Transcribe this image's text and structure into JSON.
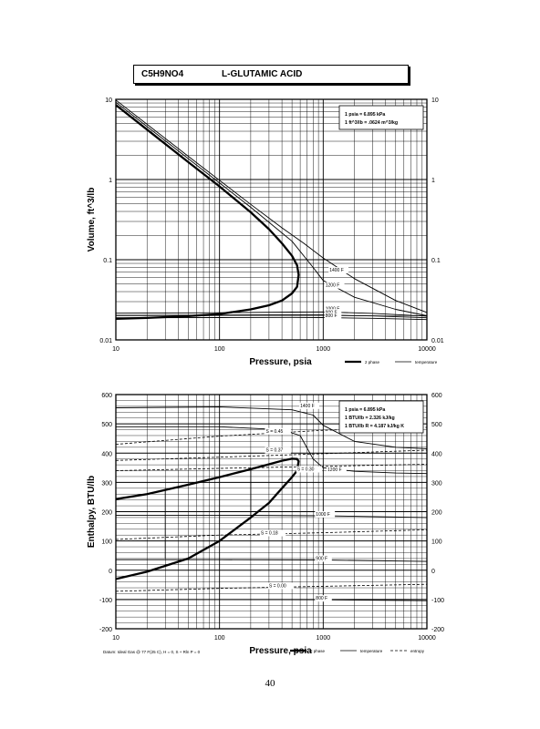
{
  "header": {
    "formula": "C5H9NO4",
    "compound": "L-GLUTAMIC ACID"
  },
  "page_number": "40",
  "chart_data": [
    {
      "type": "line",
      "xlabel": "Pressure,  psia",
      "ylabel": "Volume, ft^3/lb",
      "x_scale": "log",
      "y_scale": "log",
      "xlim": [
        10,
        10000
      ],
      "ylim": [
        0.01,
        10
      ],
      "grid": true,
      "x_ticks": [
        "10",
        "100",
        "1000",
        "10000"
      ],
      "y_ticks": [
        "0.01",
        "0.1",
        "1",
        "10"
      ],
      "y_ticks_right": [
        "0.01",
        "0.1",
        "1",
        "10"
      ],
      "conversion_box": {
        "lines": [
          "1 psia  =  6.895 kPa",
          "1 ft^3/lb  =  .0624 m^3/kg"
        ],
        "position": "top-right"
      },
      "legend": [
        {
          "label": "2 phase",
          "style": "thick"
        },
        {
          "label": "temperature",
          "style": "thin"
        }
      ],
      "series": [
        {
          "name": "2 phase",
          "style": "thick",
          "x": [
            10,
            20,
            50,
            100,
            200,
            300,
            400,
            500,
            560,
            580,
            560,
            500,
            400,
            300,
            200,
            100,
            50,
            20,
            10
          ],
          "y": [
            8.5,
            4.2,
            1.65,
            0.82,
            0.39,
            0.24,
            0.16,
            0.112,
            0.085,
            0.065,
            0.046,
            0.038,
            0.031,
            0.027,
            0.024,
            0.021,
            0.0198,
            0.0188,
            0.0183
          ]
        },
        {
          "name": "1400 F",
          "style": "thin",
          "x": [
            10,
            50,
            200,
            400,
            650,
            1000,
            2000,
            5000,
            10000
          ],
          "y": [
            9.8,
            1.95,
            0.49,
            0.25,
            0.16,
            0.105,
            0.058,
            0.031,
            0.022
          ]
        },
        {
          "name": "1200 F",
          "style": "thin",
          "x": [
            10,
            50,
            200,
            500,
            800,
            1000,
            2000,
            5000,
            10000
          ],
          "y": [
            9.2,
            1.82,
            0.45,
            0.17,
            0.08,
            0.055,
            0.034,
            0.024,
            0.02
          ]
        },
        {
          "name": "1000 F",
          "style": "thin",
          "x": [
            10,
            100,
            500,
            1000,
            3000,
            10000
          ],
          "y": [
            0.0215,
            0.0218,
            0.0222,
            0.0223,
            0.0214,
            0.0198
          ]
        },
        {
          "name": "900 F",
          "style": "thin",
          "x": [
            10,
            100,
            500,
            1000,
            3000,
            10000
          ],
          "y": [
            0.0202,
            0.0204,
            0.0206,
            0.0205,
            0.0199,
            0.0189
          ]
        },
        {
          "name": "800 F",
          "style": "thin",
          "x": [
            10,
            100,
            500,
            1000,
            3000,
            10000
          ],
          "y": [
            0.0189,
            0.019,
            0.0191,
            0.019,
            0.0186,
            0.0179
          ]
        }
      ],
      "annotations": [
        {
          "text": "1400 F",
          "x": 1150,
          "y": 0.071
        },
        {
          "text": "1200 F",
          "x": 1050,
          "y": 0.046
        },
        {
          "text": "1000 F",
          "x": 1050,
          "y": 0.0235
        },
        {
          "text": "900 F",
          "x": 1050,
          "y": 0.0212
        },
        {
          "text": "800 F",
          "x": 1050,
          "y": 0.0192
        }
      ]
    },
    {
      "type": "line",
      "xlabel": "Pressure,  psia",
      "ylabel": "Enthalpy, BTU/lb",
      "x_scale": "log",
      "xlim": [
        10,
        10000
      ],
      "ylim": [
        -200,
        600
      ],
      "grid": true,
      "x_ticks": [
        "10",
        "100",
        "1000",
        "10000"
      ],
      "y_ticks": [
        "-200",
        "-100",
        "0",
        "100",
        "200",
        "300",
        "400",
        "500",
        "600"
      ],
      "y_ticks_right": [
        "-200",
        "-100",
        "0",
        "100",
        "200",
        "300",
        "400",
        "500",
        "600"
      ],
      "conversion_box": {
        "lines": [
          "1 psia  =  6.895 kPa",
          "1 BTU/lb  =  2.326 kJ/kg",
          "1 BTU/lb R  =  4.187 kJ/kg K"
        ],
        "position": "top-right"
      },
      "datum": "Datum: Ideal Gas @ 77 F(25 C),  H = 0,  S + Rln P = 0",
      "legend": [
        {
          "label": "2 phase",
          "style": "thick"
        },
        {
          "label": "temperature",
          "style": "thin"
        },
        {
          "label": "entropy",
          "style": "dashed"
        }
      ],
      "series": [
        {
          "name": "2 phase",
          "style": "thick",
          "x": [
            10,
            20,
            50,
            100,
            200,
            300,
            400,
            500,
            560,
            580,
            560,
            500,
            400,
            300,
            200,
            100,
            50,
            20,
            10
          ],
          "y": [
            243,
            260,
            292,
            318,
            345,
            362,
            374,
            381,
            380,
            372,
            340,
            318,
            280,
            230,
            180,
            100,
            40,
            -5,
            -30
          ]
        },
        {
          "name": "2 phase vertical",
          "style": "thin",
          "x": [
            30,
            30
          ],
          "y": [
            278,
            40
          ]
        },
        {
          "name": "2 phase vertical 2",
          "style": "thin",
          "x": [
            200,
            200
          ],
          "y": [
            345,
            180
          ]
        },
        {
          "name": "1400 F",
          "style": "thin",
          "x": [
            10,
            100,
            500,
            800,
            1000,
            2000,
            5000,
            10000
          ],
          "y": [
            555,
            558,
            548,
            530,
            495,
            440,
            420,
            415
          ]
        },
        {
          "name": "1200 F",
          "style": "thin",
          "x": [
            10,
            100,
            400,
            600,
            800,
            1000,
            2000,
            5000,
            10000
          ],
          "y": [
            490,
            490,
            480,
            460,
            380,
            350,
            338,
            332,
            330
          ]
        },
        {
          "name": "1000 F",
          "style": "thin",
          "x": [
            10,
            100,
            1000,
            10000
          ],
          "y": [
            188,
            188,
            186,
            180
          ]
        },
        {
          "name": "900 F",
          "style": "thin",
          "x": [
            10,
            100,
            1000,
            10000
          ],
          "y": [
            36,
            36,
            35,
            30
          ]
        },
        {
          "name": "800 F",
          "style": "thin",
          "x": [
            10,
            100,
            1000,
            10000
          ],
          "y": [
            -100,
            -100,
            -101,
            -104
          ]
        },
        {
          "name": "S = 0.45",
          "style": "dashed",
          "x": [
            10,
            100,
            1000,
            10000
          ],
          "y": [
            430,
            458,
            478,
            488
          ]
        },
        {
          "name": "S = 0.37",
          "style": "dashed",
          "x": [
            10,
            100,
            1000,
            10000
          ],
          "y": [
            375,
            386,
            398,
            410
          ]
        },
        {
          "name": "S = 0.30",
          "style": "dashed",
          "x": [
            10,
            100,
            1000,
            10000
          ],
          "y": [
            340,
            348,
            355,
            362
          ]
        },
        {
          "name": "S = 0.18",
          "style": "dashed",
          "x": [
            10,
            100,
            1000,
            10000
          ],
          "y": [
            105,
            120,
            128,
            138
          ]
        },
        {
          "name": "S = 0.00",
          "style": "dashed",
          "x": [
            10,
            100,
            1000,
            10000
          ],
          "y": [
            -72,
            -62,
            -55,
            -48
          ]
        }
      ],
      "annotations": [
        {
          "text": "1400 F",
          "x": 600,
          "y": 557
        },
        {
          "text": "1200 F",
          "x": 1100,
          "y": 338
        },
        {
          "text": "1000 F",
          "x": 850,
          "y": 186
        },
        {
          "text": "900 F",
          "x": 850,
          "y": 35
        },
        {
          "text": "800 F",
          "x": 850,
          "y": -101
        },
        {
          "text": "S = 0.45",
          "x": 280,
          "y": 470
        },
        {
          "text": "S = 0.37",
          "x": 280,
          "y": 405
        },
        {
          "text": "S = 0.30",
          "x": 560,
          "y": 340
        },
        {
          "text": "S = 0.18",
          "x": 250,
          "y": 122
        },
        {
          "text": "S = 0.00",
          "x": 300,
          "y": -58
        }
      ]
    }
  ]
}
